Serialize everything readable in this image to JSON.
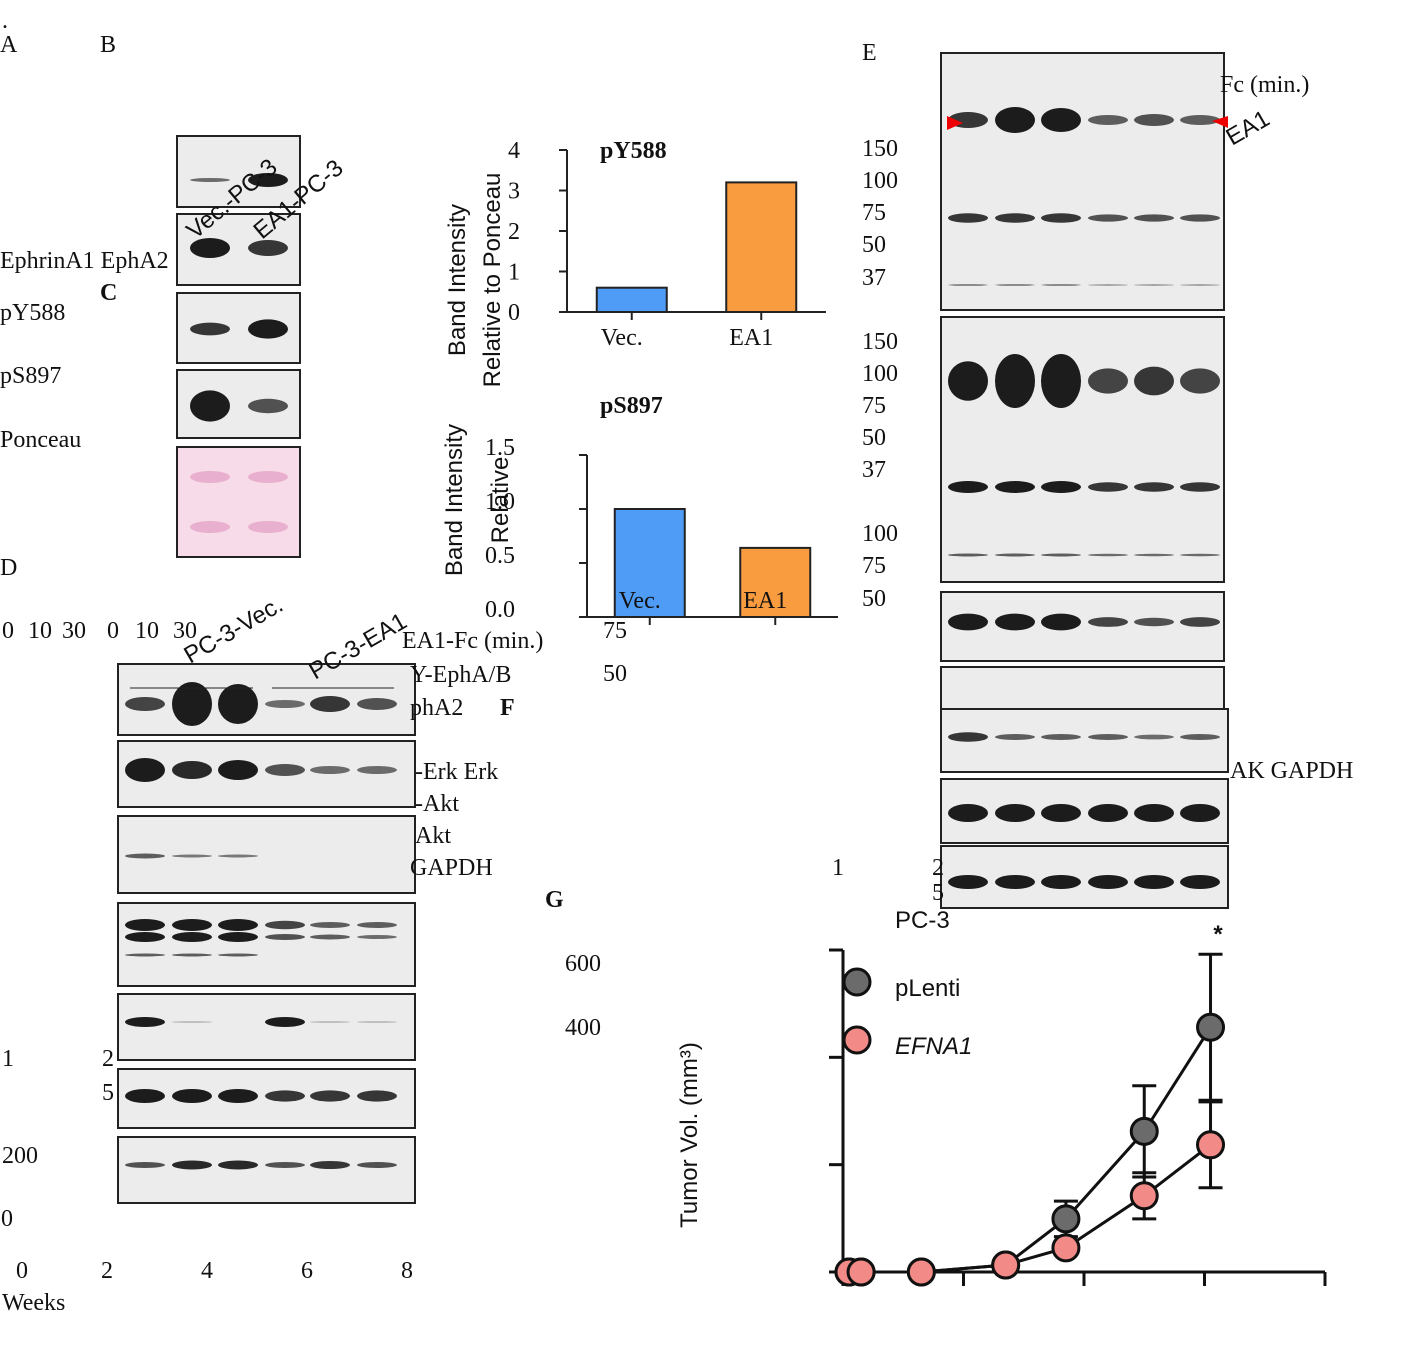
{
  "dot": ".",
  "panels": [
    "A",
    "B",
    "C",
    "D",
    "E",
    "F",
    "G"
  ],
  "blot_b": {
    "lanes": [
      "Vec.-PC-3",
      "EA1-PC-3"
    ],
    "rows": [
      "EphrinA1 EphA2",
      "pY588",
      "pS897",
      "Ponceau"
    ]
  },
  "blot_d": {
    "groups": [
      "PC-3-Vec.",
      "PC-3-EA1"
    ],
    "times": [
      "0",
      "10",
      "30",
      "0",
      "10",
      "30"
    ],
    "unit": "EA1-Fc (min.)",
    "rows": [
      "Y-EphA/B",
      "phA2",
      "-Erk Erk",
      "-Akt",
      "Akt",
      "GAPDH"
    ]
  },
  "blot_e": {
    "unit": "Fc (min.)",
    "label": "EA1",
    "markers": [
      "150",
      "100",
      "75",
      "50",
      "37",
      "150",
      "100",
      "75",
      "50",
      "37",
      "100",
      "75",
      "50"
    ],
    "rows": "AK GAPDH"
  },
  "fragments": [
    "75",
    "50",
    "1",
    "2",
    "5",
    "1",
    "2",
    "5"
  ],
  "chart_data": [
    {
      "type": "bar",
      "title": "pY588",
      "y_label": [
        "Band Intensity",
        "Relative to Ponceau"
      ],
      "categories": [
        "Vec.",
        "EA1"
      ],
      "values": [
        0.6,
        3.2
      ],
      "colors": [
        "#4f9cf7",
        "#f99c3f"
      ],
      "ylim": [
        0,
        4
      ],
      "yticks": [
        0,
        1,
        2,
        3,
        4
      ]
    },
    {
      "type": "bar",
      "title": "pS897",
      "y_label": [
        "Band Intensity",
        "Relative"
      ],
      "categories": [
        "Vec.",
        "EA1"
      ],
      "values": [
        1.0,
        0.64
      ],
      "colors": [
        "#4f9cf7",
        "#f99c3f"
      ],
      "ylim": [
        0,
        1.5
      ],
      "yticks": [
        {
          "value": 0,
          "label": "0.0"
        },
        0.5,
        {
          "value": 1,
          "label": "1.0"
        },
        1.5
      ]
    },
    {
      "type": "line",
      "title": "PC-3",
      "y_label": "Tumor Vol. (mm³)",
      "x_label": "Weeks",
      "annotation": "*",
      "x": [
        0.1,
        0.3,
        1.3,
        2.7,
        3.7,
        5.0,
        6.1
      ],
      "series": [
        {
          "name": "pLenti",
          "color": "#6b6b6b",
          "values": [
            0,
            0,
            0,
            13,
            99,
            262,
            456
          ],
          "errors": [
            null,
            null,
            null,
            null,
            33,
            85,
            136
          ]
        },
        {
          "name": "EFNA1",
          "color": "#f28b87",
          "values": [
            0,
            0,
            0,
            13,
            45,
            142,
            237
          ],
          "errors": [
            null,
            null,
            null,
            null,
            12,
            43,
            80
          ]
        }
      ],
      "xlim": [
        0,
        8
      ],
      "xticks": [
        0,
        2,
        4,
        6,
        8
      ],
      "ylim": [
        0,
        600
      ],
      "yticks": [
        0,
        200,
        400,
        600
      ]
    }
  ]
}
